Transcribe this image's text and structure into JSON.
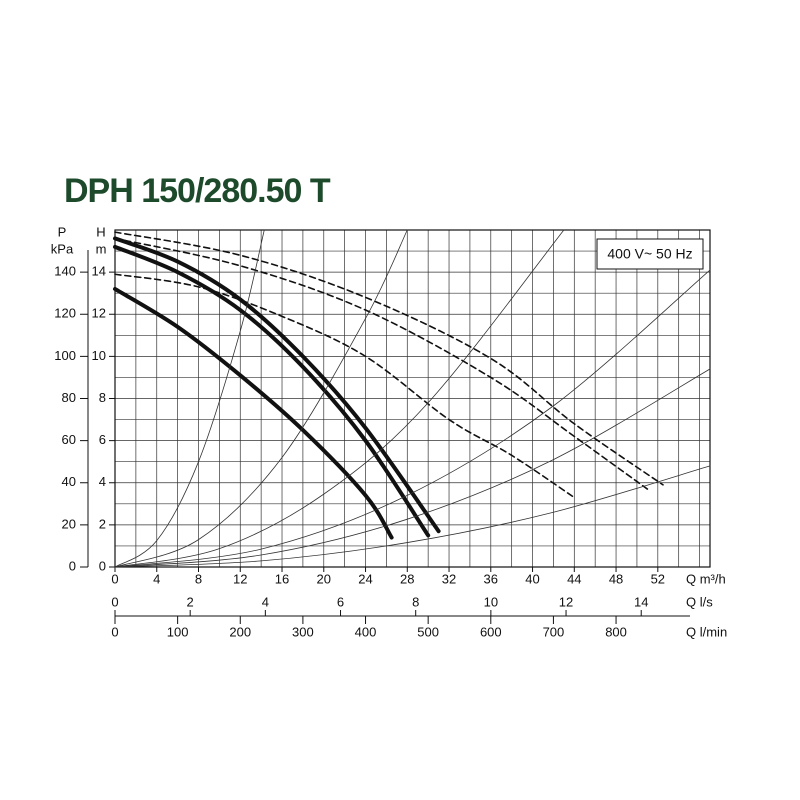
{
  "chart_data": {
    "type": "line",
    "title": "DPH 150/280.50 T",
    "annotation": "400 V~ 50 Hz",
    "ylabel": [
      "H",
      "m"
    ],
    "y2label": [
      "P",
      "kPa"
    ],
    "xlabel": "Q m³/h",
    "x2label": "Q l/s",
    "x3label": "Q l/min",
    "xlim": [
      0,
      57
    ],
    "xticks": [
      0,
      4,
      8,
      12,
      16,
      20,
      24,
      28,
      32,
      36,
      40,
      44,
      48,
      52
    ],
    "xminor": [
      2,
      6,
      10,
      14,
      18,
      22,
      26,
      30,
      34,
      38,
      42,
      46,
      50,
      54,
      56
    ],
    "ylim": [
      0,
      16
    ],
    "yticks": [
      0,
      2,
      4,
      6,
      8,
      10,
      12,
      14
    ],
    "yminor": [
      1,
      3,
      5,
      7,
      9,
      11,
      13,
      15
    ],
    "y2lim": [
      0,
      160
    ],
    "y2ticks": [
      0,
      20,
      40,
      60,
      80,
      100,
      120,
      140
    ],
    "x2lim": [
      0,
      15.83
    ],
    "x2ticks": [
      0,
      2,
      4,
      6,
      8,
      10,
      12,
      14
    ],
    "x3lim": [
      0,
      950
    ],
    "x3ticks": [
      0,
      100,
      200,
      300,
      400,
      500,
      600,
      700,
      800
    ],
    "grid": true,
    "series": [
      {
        "color": "#111",
        "width": 4,
        "dash": false,
        "x": [
          0,
          6,
          12,
          18,
          24,
          31
        ],
        "values": [
          15.6,
          14.5,
          12.7,
          10.0,
          6.6,
          1.7
        ]
      },
      {
        "color": "#111",
        "width": 4,
        "dash": false,
        "x": [
          0,
          6,
          12,
          18,
          24,
          30
        ],
        "values": [
          15.2,
          14.0,
          12.2,
          9.5,
          6.0,
          1.5
        ]
      },
      {
        "color": "#111",
        "width": 4,
        "dash": false,
        "x": [
          0,
          6,
          12,
          18,
          24,
          26.5
        ],
        "values": [
          13.2,
          11.4,
          9.1,
          6.5,
          3.4,
          1.4
        ]
      },
      {
        "color": "#111",
        "width": 1.6,
        "dash": true,
        "x": [
          0,
          12,
          24,
          36,
          44,
          52.5
        ],
        "values": [
          15.9,
          14.8,
          12.8,
          9.9,
          6.8,
          3.9
        ]
      },
      {
        "color": "#111",
        "width": 1.6,
        "dash": true,
        "x": [
          0,
          12,
          24,
          36,
          44,
          51
        ],
        "values": [
          15.6,
          14.3,
          12.2,
          9.0,
          6.2,
          3.7
        ]
      },
      {
        "color": "#111",
        "width": 1.6,
        "dash": true,
        "x": [
          0,
          8,
          16,
          24,
          32,
          38,
          44
        ],
        "values": [
          13.9,
          13.3,
          11.9,
          10.0,
          7.0,
          5.3,
          3.3
        ]
      },
      {
        "color": "#333",
        "width": 0.8,
        "dash": false,
        "x": [
          0,
          4,
          8,
          12,
          14.3
        ],
        "values": [
          0,
          1.25,
          5,
          11.2,
          16
        ]
      },
      {
        "color": "#333",
        "width": 0.8,
        "dash": false,
        "x": [
          0,
          8,
          16,
          24,
          28
        ],
        "values": [
          0,
          1.3,
          5.2,
          11.8,
          16
        ]
      },
      {
        "color": "#333",
        "width": 0.8,
        "dash": false,
        "x": [
          0,
          10,
          20,
          30,
          43
        ],
        "values": [
          0,
          0.87,
          3.46,
          7.8,
          16
        ]
      },
      {
        "color": "#333",
        "width": 0.8,
        "dash": false,
        "x": [
          0,
          14,
          28,
          42,
          57
        ],
        "values": [
          0,
          0.85,
          3.4,
          7.65,
          14.1
        ]
      },
      {
        "color": "#333",
        "width": 0.8,
        "dash": false,
        "x": [
          0,
          14,
          28,
          42,
          57
        ],
        "values": [
          0,
          0.57,
          2.27,
          5.1,
          9.4
        ]
      },
      {
        "color": "#333",
        "width": 0.8,
        "dash": false,
        "x": [
          0,
          14,
          28,
          42,
          57
        ],
        "values": [
          0,
          0.29,
          1.16,
          2.6,
          4.8
        ]
      }
    ]
  }
}
